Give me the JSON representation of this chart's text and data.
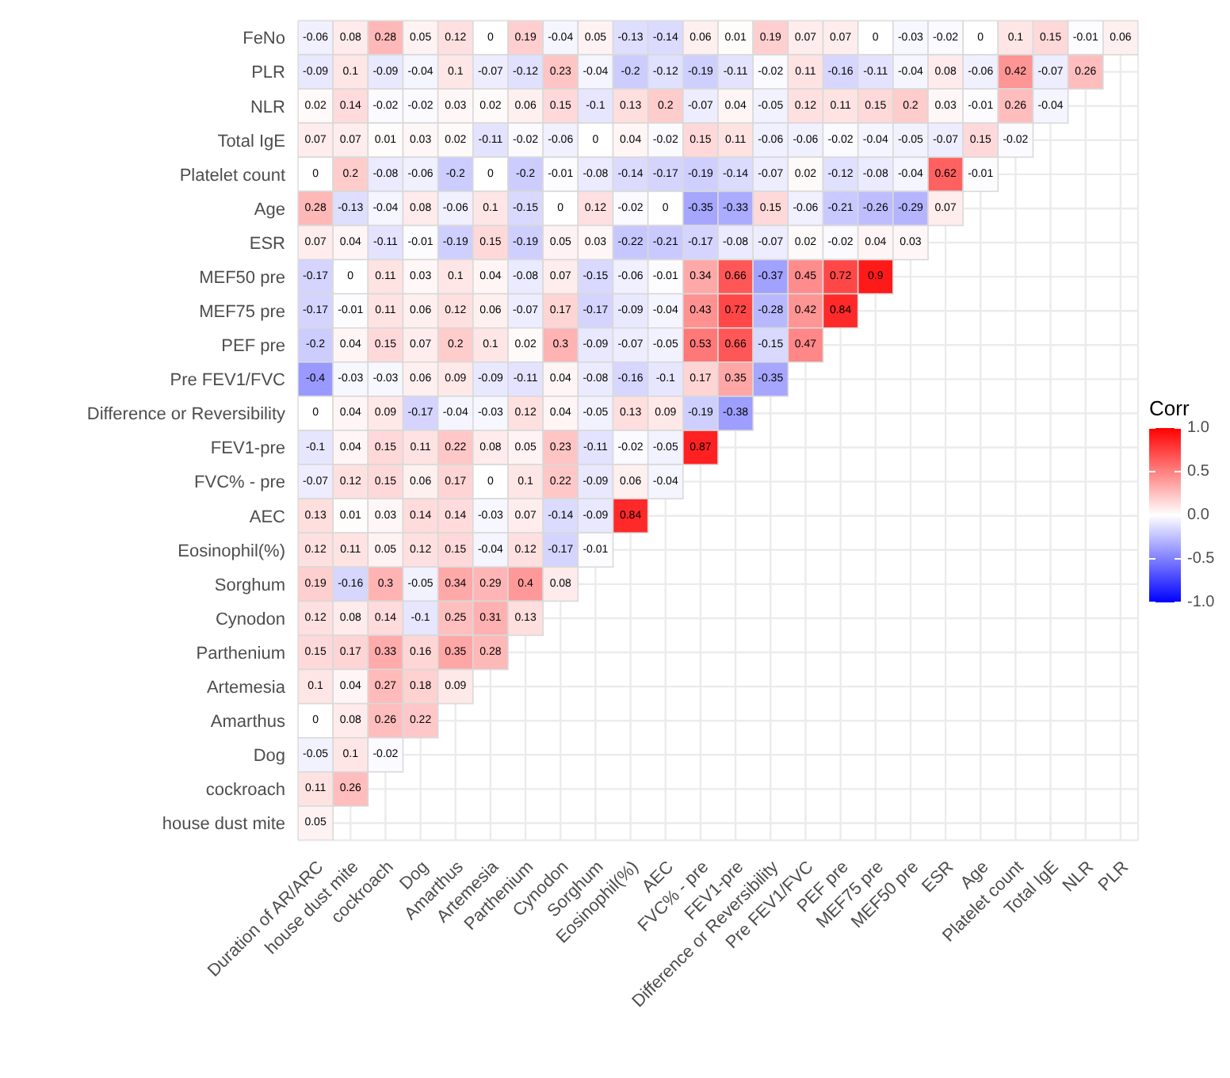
{
  "chart_data": {
    "type": "heatmap",
    "categories": [
      "Duration of AR/ARC",
      "house dust mite",
      "cockroach",
      "Dog",
      "Amarthus",
      "Artemesia",
      "Parthenium",
      "Cynodon",
      "Sorghum",
      "Eosinophil(%)",
      "AEC",
      "FVC% - pre",
      "FEV1-pre",
      "Difference or Reversibility",
      "Pre FEV1/FVC",
      "PEF pre",
      "MEF75 pre",
      "MEF50 pre",
      "ESR",
      "Age",
      "Platelet count",
      "Total IgE",
      "NLR",
      "PLR"
    ],
    "y_categories": [
      "FeNo",
      "PLR",
      "NLR",
      "Total IgE",
      "Platelet count",
      "Age",
      "ESR",
      "MEF50 pre",
      "MEF75 pre",
      "PEF pre",
      "Pre FEV1/FVC",
      "Difference or Reversibility",
      "FEV1-pre",
      "FVC% - pre",
      "AEC",
      "Eosinophil(%)",
      "Sorghum",
      "Cynodon",
      "Parthenium",
      "Artemesia",
      "Amarthus",
      "Dog",
      "cockroach",
      "house dust mite"
    ],
    "cells": [
      [
        -0.06,
        0.08,
        0.28,
        0.05,
        0.12,
        0,
        0.19,
        -0.04,
        0.05,
        -0.13,
        -0.14,
        0.06,
        0.01,
        0.19,
        0.07,
        0.07,
        0,
        -0.03,
        -0.02,
        0,
        0.1,
        0.15,
        -0.01,
        0.06
      ],
      [
        -0.09,
        0.1,
        -0.09,
        -0.04,
        0.1,
        -0.07,
        -0.12,
        0.23,
        -0.04,
        -0.2,
        -0.12,
        -0.19,
        -0.11,
        -0.02,
        0.11,
        -0.16,
        -0.11,
        -0.04,
        0.08,
        -0.06,
        0.42,
        -0.07,
        0.26,
        null
      ],
      [
        0.02,
        0.14,
        -0.02,
        -0.02,
        0.03,
        0.02,
        0.06,
        0.15,
        -0.1,
        0.13,
        0.2,
        -0.07,
        0.04,
        -0.05,
        0.12,
        0.11,
        0.15,
        0.2,
        0.03,
        -0.01,
        0.26,
        -0.04,
        null,
        null
      ],
      [
        0.07,
        0.07,
        0.01,
        0.03,
        0.02,
        -0.11,
        -0.02,
        -0.06,
        0,
        0.04,
        -0.02,
        0.15,
        0.11,
        -0.06,
        -0.06,
        -0.02,
        -0.04,
        -0.05,
        -0.07,
        0.15,
        -0.02,
        null,
        null,
        null
      ],
      [
        0,
        0.2,
        -0.08,
        -0.06,
        -0.2,
        0,
        -0.2,
        -0.01,
        -0.08,
        -0.14,
        -0.17,
        -0.19,
        -0.14,
        -0.07,
        0.02,
        -0.12,
        -0.08,
        -0.04,
        0.62,
        -0.01,
        null,
        null,
        null,
        null
      ],
      [
        0.28,
        -0.13,
        -0.04,
        0.08,
        -0.06,
        0.1,
        -0.15,
        0,
        0.12,
        -0.02,
        0,
        -0.35,
        -0.33,
        0.15,
        -0.06,
        -0.21,
        -0.26,
        -0.29,
        0.07,
        null,
        null,
        null,
        null,
        null
      ],
      [
        0.07,
        0.04,
        -0.11,
        -0.01,
        -0.19,
        0.15,
        -0.19,
        0.05,
        0.03,
        -0.22,
        -0.21,
        -0.17,
        -0.08,
        -0.07,
        0.02,
        -0.02,
        0.04,
        0.03,
        null,
        null,
        null,
        null,
        null,
        null
      ],
      [
        -0.17,
        0,
        0.11,
        0.03,
        0.1,
        0.04,
        -0.08,
        0.07,
        -0.15,
        -0.06,
        -0.01,
        0.34,
        0.66,
        -0.37,
        0.45,
        0.72,
        0.9,
        null,
        null,
        null,
        null,
        null,
        null,
        null
      ],
      [
        -0.17,
        -0.01,
        0.11,
        0.06,
        0.12,
        0.06,
        -0.07,
        0.17,
        -0.17,
        -0.09,
        -0.04,
        0.43,
        0.72,
        -0.28,
        0.42,
        0.84,
        null,
        null,
        null,
        null,
        null,
        null,
        null,
        null
      ],
      [
        -0.2,
        0.04,
        0.15,
        0.07,
        0.2,
        0.1,
        0.02,
        0.3,
        -0.09,
        -0.07,
        -0.05,
        0.53,
        0.66,
        -0.15,
        0.47,
        null,
        null,
        null,
        null,
        null,
        null,
        null,
        null,
        null
      ],
      [
        -0.4,
        -0.03,
        -0.03,
        0.06,
        0.09,
        -0.09,
        -0.11,
        0.04,
        -0.08,
        -0.16,
        -0.1,
        0.17,
        0.35,
        -0.35,
        null,
        null,
        null,
        null,
        null,
        null,
        null,
        null,
        null,
        null
      ],
      [
        0,
        0.04,
        0.09,
        -0.17,
        -0.04,
        -0.03,
        0.12,
        0.04,
        -0.05,
        0.13,
        0.09,
        -0.19,
        -0.38,
        null,
        null,
        null,
        null,
        null,
        null,
        null,
        null,
        null,
        null,
        null
      ],
      [
        -0.1,
        0.04,
        0.15,
        0.11,
        0.22,
        0.08,
        0.05,
        0.23,
        -0.11,
        -0.02,
        -0.05,
        0.87,
        null,
        null,
        null,
        null,
        null,
        null,
        null,
        null,
        null,
        null,
        null,
        null
      ],
      [
        -0.07,
        0.12,
        0.15,
        0.06,
        0.17,
        0,
        0.1,
        0.22,
        -0.09,
        0.06,
        -0.04,
        null,
        null,
        null,
        null,
        null,
        null,
        null,
        null,
        null,
        null,
        null,
        null,
        null
      ],
      [
        0.13,
        0.01,
        0.03,
        0.14,
        0.14,
        -0.03,
        0.07,
        -0.14,
        -0.09,
        0.84,
        null,
        null,
        null,
        null,
        null,
        null,
        null,
        null,
        null,
        null,
        null,
        null,
        null,
        null
      ],
      [
        0.12,
        0.11,
        0.05,
        0.12,
        0.15,
        -0.04,
        0.12,
        -0.17,
        -0.01,
        null,
        null,
        null,
        null,
        null,
        null,
        null,
        null,
        null,
        null,
        null,
        null,
        null,
        null,
        null
      ],
      [
        0.19,
        -0.16,
        0.3,
        -0.05,
        0.34,
        0.29,
        0.4,
        0.08,
        null,
        null,
        null,
        null,
        null,
        null,
        null,
        null,
        null,
        null,
        null,
        null,
        null,
        null,
        null,
        null
      ],
      [
        0.12,
        0.08,
        0.14,
        -0.1,
        0.25,
        0.31,
        0.13,
        null,
        null,
        null,
        null,
        null,
        null,
        null,
        null,
        null,
        null,
        null,
        null,
        null,
        null,
        null,
        null,
        null
      ],
      [
        0.15,
        0.17,
        0.33,
        0.16,
        0.35,
        0.28,
        null,
        null,
        null,
        null,
        null,
        null,
        null,
        null,
        null,
        null,
        null,
        null,
        null,
        null,
        null,
        null,
        null,
        null
      ],
      [
        0.1,
        0.04,
        0.27,
        0.18,
        0.09,
        null,
        null,
        null,
        null,
        null,
        null,
        null,
        null,
        null,
        null,
        null,
        null,
        null,
        null,
        null,
        null,
        null,
        null,
        null
      ],
      [
        0,
        0.08,
        0.26,
        0.22,
        null,
        null,
        null,
        null,
        null,
        null,
        null,
        null,
        null,
        null,
        null,
        null,
        null,
        null,
        null,
        null,
        null,
        null,
        null,
        null
      ],
      [
        -0.05,
        0.1,
        -0.02,
        null,
        null,
        null,
        null,
        null,
        null,
        null,
        null,
        null,
        null,
        null,
        null,
        null,
        null,
        null,
        null,
        null,
        null,
        null,
        null,
        null
      ],
      [
        0.11,
        0.26,
        null,
        null,
        null,
        null,
        null,
        null,
        null,
        null,
        null,
        null,
        null,
        null,
        null,
        null,
        null,
        null,
        null,
        null,
        null,
        null,
        null,
        null
      ],
      [
        0.05,
        null,
        null,
        null,
        null,
        null,
        null,
        null,
        null,
        null,
        null,
        null,
        null,
        null,
        null,
        null,
        null,
        null,
        null,
        null,
        null,
        null,
        null,
        null
      ]
    ],
    "clabel": "Corr",
    "clim": [
      -1,
      1
    ],
    "cticks": [
      {
        "value": -1,
        "label": "-1.0"
      },
      {
        "value": -0.5,
        "label": "-0.5"
      },
      {
        "value": 0,
        "label": "0.0"
      },
      {
        "value": 0.5,
        "label": "0.5"
      },
      {
        "value": 1,
        "label": "1.0"
      }
    ],
    "data_labels": true,
    "grid": true
  }
}
